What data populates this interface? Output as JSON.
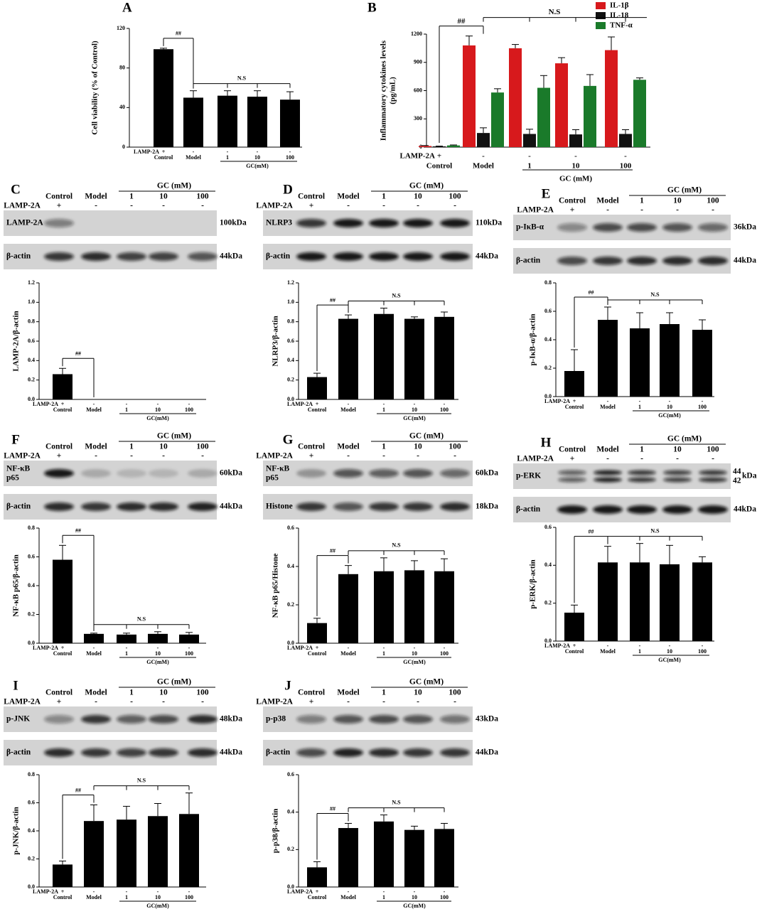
{
  "chart_data": [
    {
      "type": "bar",
      "panel": "A",
      "ylabel": "Cell viability (% of Control)",
      "categories": [
        "Control",
        "Model",
        "1",
        "10",
        "100"
      ],
      "row_label": "LAMP-2A",
      "row_marks": [
        "+",
        "-",
        "-",
        "-",
        "-"
      ],
      "group_label": "GC(mM)",
      "values": [
        99,
        50,
        52,
        51,
        48
      ],
      "errors": [
        1,
        7,
        5,
        6,
        8
      ],
      "color": "#000000",
      "ylim": [
        0,
        120
      ],
      "yticks": [
        0,
        40,
        80,
        120
      ],
      "annotations": [
        "##",
        "N.S"
      ]
    },
    {
      "type": "grouped_bar",
      "panel": "B",
      "ylabel": [
        "Inflammatory cytokines levels",
        "(pg/mL)"
      ],
      "categories": [
        "Control",
        "Model",
        "1",
        "10",
        "100"
      ],
      "row_label": "LAMP-2A",
      "row_marks": [
        "+",
        "-",
        "-",
        "-",
        "-"
      ],
      "group_label": "GC (mM)",
      "series": [
        {
          "name": "IL-1β",
          "color": "#d7191c",
          "values": [
            12,
            1080,
            1050,
            890,
            1030
          ],
          "errors": [
            5,
            100,
            40,
            60,
            140
          ]
        },
        {
          "name": "IL-18",
          "color": "#111111",
          "values": [
            8,
            150,
            140,
            135,
            140
          ],
          "errors": [
            3,
            55,
            50,
            50,
            45
          ]
        },
        {
          "name": "TNF-α",
          "color": "#1a7a2a",
          "values": [
            18,
            580,
            630,
            650,
            715
          ],
          "errors": [
            5,
            40,
            130,
            120,
            20
          ]
        }
      ],
      "ylim": [
        0,
        1200
      ],
      "yticks": [
        0,
        300,
        600,
        900,
        1200
      ],
      "annotations": [
        "##",
        "N.S"
      ]
    },
    {
      "type": "bar",
      "ylabel": "LAMP-2A/β-actin",
      "categories": [
        "Control",
        "Model",
        "1",
        "10",
        "100"
      ],
      "row_label": "LAMP-2A",
      "row_marks": [
        "+",
        "-",
        "-",
        "-",
        "-"
      ],
      "group_label": "GC(mM)",
      "values": [
        0.26,
        0,
        0,
        0,
        0
      ],
      "errors": [
        0.06,
        0,
        0,
        0,
        0
      ],
      "color": "#000000",
      "ylim": [
        0,
        1.2
      ],
      "yticks": [
        {
          "value": 0,
          "label": "0.0"
        },
        0.2,
        0.4,
        0.6,
        0.8,
        {
          "value": 1,
          "label": "1.0"
        },
        1.2
      ],
      "annotations": [
        "##"
      ]
    },
    {
      "type": "bar",
      "ylabel": "NLRP3/β-actin",
      "categories": [
        "Control",
        "Model",
        "1",
        "10",
        "100"
      ],
      "row_label": "LAMP-2A",
      "row_marks": [
        "+",
        "-",
        "-",
        "-",
        "-"
      ],
      "group_label": "GC(mM)",
      "values": [
        0.23,
        0.83,
        0.88,
        0.83,
        0.85
      ],
      "errors": [
        0.04,
        0.04,
        0.06,
        0.02,
        0.05
      ],
      "color": "#000000",
      "ylim": [
        0,
        1.2
      ],
      "yticks": [
        {
          "value": 0,
          "label": "0.0"
        },
        0.2,
        0.4,
        0.6,
        0.8,
        {
          "value": 1,
          "label": "1.0"
        },
        1.2
      ],
      "annotations": [
        "##",
        "N.S"
      ]
    },
    {
      "type": "bar",
      "ylabel": "p-IκB-α/β-actin",
      "categories": [
        "Control",
        "Model",
        "1",
        "10",
        "100"
      ],
      "row_label": "LAMP-2A",
      "row_marks": [
        "+",
        "-",
        "-",
        "-",
        "-"
      ],
      "group_label": "GC(mM)",
      "values": [
        0.18,
        0.54,
        0.48,
        0.51,
        0.47
      ],
      "errors": [
        0.15,
        0.09,
        0.11,
        0.08,
        0.07
      ],
      "color": "#000000",
      "ylim": [
        0,
        0.8
      ],
      "yticks": [
        {
          "value": 0,
          "label": "0.0"
        },
        0.2,
        0.4,
        0.6,
        0.8
      ],
      "annotations": [
        "##",
        "N.S"
      ]
    },
    {
      "type": "bar",
      "ylabel": "NF-κB p65/β-actin",
      "categories": [
        "Control",
        "Model",
        "1",
        "10",
        "100"
      ],
      "row_label": "LAMP-2A",
      "row_marks": [
        "+",
        "-",
        "-",
        "-",
        "-"
      ],
      "group_label": "GC(mM)",
      "values": [
        0.58,
        0.065,
        0.06,
        0.065,
        0.06
      ],
      "errors": [
        0.1,
        0.005,
        0.01,
        0.015,
        0.015
      ],
      "color": "#000000",
      "ylim": [
        0,
        0.8
      ],
      "yticks": [
        {
          "value": 0,
          "label": "0.0"
        },
        0.2,
        0.4,
        0.6,
        0.8
      ],
      "annotations": [
        "##",
        "N.S"
      ]
    },
    {
      "type": "bar",
      "ylabel": "NF-κB p65/Histone",
      "categories": [
        "Control",
        "Model",
        "1",
        "10",
        "100"
      ],
      "row_label": "LAMP-2A",
      "row_marks": [
        "+",
        "-",
        "-",
        "-",
        "-"
      ],
      "group_label": "GC(mM)",
      "values": [
        0.105,
        0.36,
        0.375,
        0.38,
        0.375
      ],
      "errors": [
        0.025,
        0.045,
        0.07,
        0.05,
        0.065
      ],
      "color": "#000000",
      "ylim": [
        0,
        0.6
      ],
      "yticks": [
        {
          "value": 0,
          "label": "0.0"
        },
        0.2,
        0.4,
        0.6
      ],
      "annotations": [
        "##",
        "N.S"
      ]
    },
    {
      "type": "bar",
      "ylabel": "p-ERK/β-actin",
      "categories": [
        "Control",
        "Model",
        "1",
        "10",
        "100"
      ],
      "row_label": "LAMP-2A",
      "row_marks": [
        "+",
        "-",
        "-",
        "-",
        "-"
      ],
      "group_label": "GC(mM)",
      "values": [
        0.15,
        0.415,
        0.415,
        0.405,
        0.415
      ],
      "errors": [
        0.04,
        0.085,
        0.1,
        0.1,
        0.03
      ],
      "color": "#000000",
      "ylim": [
        0,
        0.6
      ],
      "yticks": [
        {
          "value": 0,
          "label": "0.0"
        },
        0.2,
        0.4,
        0.6
      ],
      "annotations": [
        "##",
        "N.S"
      ]
    },
    {
      "type": "bar",
      "ylabel": "p-JNK/β-actin",
      "categories": [
        "Control",
        "Model",
        "1",
        "10",
        "100"
      ],
      "row_label": "LAMP-2A",
      "row_marks": [
        "+",
        "-",
        "-",
        "-",
        "-"
      ],
      "group_label": "GC(mM)",
      "values": [
        0.16,
        0.47,
        0.48,
        0.505,
        0.52
      ],
      "errors": [
        0.025,
        0.115,
        0.095,
        0.09,
        0.15
      ],
      "color": "#000000",
      "ylim": [
        0,
        0.8
      ],
      "yticks": [
        {
          "value": 0,
          "label": "0.0"
        },
        0.2,
        0.4,
        0.6,
        0.8
      ],
      "annotations": [
        "##",
        "N.S"
      ]
    },
    {
      "type": "bar",
      "ylabel": "p-p38/β-actin",
      "categories": [
        "Control",
        "Model",
        "1",
        "10",
        "100"
      ],
      "row_label": "LAMP-2A",
      "row_marks": [
        "+",
        "-",
        "-",
        "-",
        "-"
      ],
      "group_label": "GC(mM)",
      "values": [
        0.105,
        0.315,
        0.35,
        0.305,
        0.31
      ],
      "errors": [
        0.03,
        0.025,
        0.035,
        0.02,
        0.03
      ],
      "color": "#000000",
      "ylim": [
        0,
        0.6
      ],
      "yticks": [
        {
          "value": 0,
          "label": "0.0"
        },
        0.2,
        0.4,
        0.6
      ],
      "annotations": [
        "##",
        "N.S"
      ]
    }
  ],
  "blots": [
    {
      "panel": "C",
      "group_label": "GC (mM)",
      "header": [
        "Control",
        "Model",
        "1",
        "10",
        "100"
      ],
      "row_label": "LAMP-2A",
      "row_marks": [
        "+",
        "-",
        "-",
        "-",
        "-"
      ],
      "bands": [
        {
          "label": "LAMP-2A",
          "size": "100kDa",
          "intensity": [
            0.45,
            0,
            0,
            0,
            0
          ]
        },
        {
          "label": "β-actin",
          "size": "44kDa",
          "intensity": [
            0.8,
            0.85,
            0.75,
            0.75,
            0.65
          ]
        }
      ]
    },
    {
      "panel": "D",
      "group_label": "GC (mM)",
      "header": [
        "Control",
        "Model",
        "1",
        "10",
        "100"
      ],
      "row_label": "LAMP-2A",
      "row_marks": [
        "+",
        "-",
        "-",
        "-",
        "-"
      ],
      "bands": [
        {
          "label": "NLRP3",
          "size": "110kDa",
          "intensity": [
            0.8,
            0.95,
            0.95,
            0.95,
            0.95
          ]
        },
        {
          "label": "β-actin",
          "size": "44kDa",
          "intensity": [
            0.95,
            0.95,
            0.95,
            0.95,
            0.95
          ]
        }
      ]
    },
    {
      "panel": "E",
      "group_label": "GC (mM)",
      "header": [
        "Control",
        "Model",
        "1",
        "10",
        "100"
      ],
      "row_label": "LAMP-2A",
      "row_marks": [
        "+",
        "-",
        "-",
        "-",
        "-"
      ],
      "bands": [
        {
          "label": "p-IκB-α",
          "size": "36kDa",
          "intensity": [
            0.4,
            0.7,
            0.7,
            0.65,
            0.55
          ]
        },
        {
          "label": "β-actin",
          "size": "44kDa",
          "intensity": [
            0.7,
            0.8,
            0.85,
            0.85,
            0.85
          ]
        }
      ]
    },
    {
      "panel": "F",
      "group_label": "GC (mM)",
      "header": [
        "Control",
        "Model",
        "1",
        "10",
        "100"
      ],
      "row_label": "LAMP-2A",
      "row_marks": [
        "+",
        "-",
        "-",
        "-",
        "-"
      ],
      "bands": [
        {
          "label": [
            "NF-κB",
            "p65"
          ],
          "size": "60kDa",
          "intensity": [
            0.95,
            0.2,
            0.15,
            0.15,
            0.2
          ]
        },
        {
          "label": "β-actin",
          "size": "44kDa",
          "intensity": [
            0.85,
            0.8,
            0.85,
            0.85,
            0.9
          ]
        }
      ]
    },
    {
      "panel": "G",
      "group_label": "GC (mM)",
      "header": [
        "Control",
        "Model",
        "1",
        "10",
        "100"
      ],
      "row_label": "LAMP-2A",
      "row_marks": [
        "+",
        "-",
        "-",
        "-",
        "-"
      ],
      "bands": [
        {
          "label": [
            "NF-κB",
            "p65"
          ],
          "size": "60kDa",
          "intensity": [
            0.3,
            0.65,
            0.6,
            0.65,
            0.55
          ]
        },
        {
          "label": "Histone",
          "size": "18kDa",
          "intensity": [
            0.8,
            0.65,
            0.8,
            0.8,
            0.85
          ]
        }
      ]
    },
    {
      "panel": "H",
      "group_label": "GC (mM)",
      "header": [
        "Control",
        "Model",
        "1",
        "10",
        "100"
      ],
      "row_label": "LAMP-2A",
      "row_marks": [
        "+",
        "-",
        "-",
        "-",
        "-"
      ],
      "bands": [
        {
          "label": "p-ERK",
          "size_lines": [
            "44",
            "42"
          ],
          "unit": "kDa",
          "intensity": [
            0.6,
            0.9,
            0.8,
            0.75,
            0.8
          ]
        },
        {
          "label": "β-actin",
          "size": "44kDa",
          "intensity": [
            0.95,
            0.95,
            0.95,
            0.95,
            0.95
          ]
        }
      ]
    },
    {
      "panel": "I",
      "group_label": "GC (mM)",
      "header": [
        "Control",
        "Model",
        "1",
        "10",
        "100"
      ],
      "row_label": "LAMP-2A",
      "row_marks": [
        "+",
        "-",
        "-",
        "-",
        "-"
      ],
      "bands": [
        {
          "label": "p-JNK",
          "size": "48kDa",
          "intensity": [
            0.4,
            0.8,
            0.6,
            0.7,
            0.85
          ]
        },
        {
          "label": "β-actin",
          "size": "44kDa",
          "intensity": [
            0.85,
            0.8,
            0.75,
            0.8,
            0.85
          ]
        }
      ]
    },
    {
      "panel": "J",
      "group_label": "GC (mM)",
      "header": [
        "Control",
        "Model",
        "1",
        "10",
        "100"
      ],
      "row_label": "LAMP-2A",
      "row_marks": [
        "+",
        "-",
        "-",
        "-",
        "-"
      ],
      "bands": [
        {
          "label": "p-p38",
          "size": "43kDa",
          "intensity": [
            0.45,
            0.65,
            0.7,
            0.65,
            0.5
          ]
        },
        {
          "label": "β-actin",
          "size": "44kDa",
          "intensity": [
            0.7,
            0.9,
            0.85,
            0.8,
            0.8
          ]
        }
      ]
    }
  ]
}
